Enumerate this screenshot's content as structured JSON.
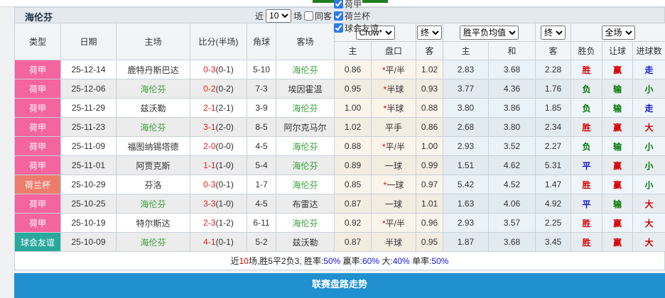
{
  "title_bar": {
    "team": "海伦芬",
    "near": "近",
    "games": "10",
    "games_suffix": "场",
    "same_venue": "同客",
    "filters": [
      {
        "label": "荷甲",
        "checked": true
      },
      {
        "label": "荷兰杯",
        "checked": true
      },
      {
        "label": "球会友谊",
        "checked": true
      }
    ]
  },
  "selects": {
    "bookmaker": "Crow*",
    "final_ah": "终",
    "avg": "胜平负均值",
    "final_avg": "终",
    "scope": "全场"
  },
  "columns": [
    "类型",
    "日期",
    "主场",
    "比分(半场)",
    "角球",
    "客场",
    "主",
    "盘口",
    "客",
    "主",
    "和",
    "客",
    "胜负",
    "让球",
    "进球数"
  ],
  "rows": [
    {
      "type": "荷甲",
      "tk": "league",
      "date": "25-12-14",
      "home": "鹿特丹斯巴达",
      "hg": false,
      "score": "0-3",
      "half": "(0-1)",
      "corner": "5-10",
      "away": "海伦芬",
      "ag": true,
      "ah": [
        "0.86",
        "*平/半",
        "1.02"
      ],
      "avg": [
        "2.83",
        "3.68",
        "2.28"
      ],
      "res": [
        "胜",
        "r"
      ],
      "hcp": [
        "赢",
        "r"
      ],
      "goal": [
        "走",
        "b"
      ]
    },
    {
      "type": "荷甲",
      "tk": "league",
      "date": "25-12-06",
      "home": "海伦芬",
      "hg": true,
      "score": "0-2",
      "half": "(0-2)",
      "corner": "7-3",
      "away": "埃因霍温",
      "ag": false,
      "ah": [
        "0.95",
        "*半球",
        "0.93"
      ],
      "avg": [
        "3.77",
        "4.36",
        "1.76"
      ],
      "res": [
        "负",
        "g"
      ],
      "hcp": [
        "输",
        "g"
      ],
      "goal": [
        "小",
        "g"
      ]
    },
    {
      "type": "荷甲",
      "tk": "league",
      "date": "25-11-29",
      "home": "兹沃勒",
      "hg": false,
      "score": "2-1",
      "half": "(2-1)",
      "corner": "3-9",
      "away": "海伦芬",
      "ag": true,
      "ah": [
        "1.00",
        "*半球",
        "0.88"
      ],
      "avg": [
        "3.80",
        "3.86",
        "1.85"
      ],
      "res": [
        "负",
        "g"
      ],
      "hcp": [
        "输",
        "g"
      ],
      "goal": [
        "走",
        "b"
      ]
    },
    {
      "type": "荷甲",
      "tk": "league",
      "date": "25-11-23",
      "home": "海伦芬",
      "hg": true,
      "score": "3-1",
      "half": "(2-0)",
      "corner": "8-5",
      "away": "阿尔克马尔",
      "ag": false,
      "ah": [
        "1.02",
        "平手",
        "0.86"
      ],
      "avg": [
        "2.68",
        "3.80",
        "2.34"
      ],
      "res": [
        "胜",
        "r"
      ],
      "hcp": [
        "赢",
        "r"
      ],
      "goal": [
        "大",
        "r"
      ]
    },
    {
      "type": "荷甲",
      "tk": "league",
      "date": "25-11-09",
      "home": "福图纳锡塔德",
      "hg": false,
      "score": "2-0",
      "half": "(0-0)",
      "corner": "4-5",
      "away": "海伦芬",
      "ag": true,
      "ah": [
        "0.88",
        "*平/半",
        "1.00"
      ],
      "avg": [
        "2.93",
        "3.52",
        "2.27"
      ],
      "res": [
        "负",
        "g"
      ],
      "hcp": [
        "输",
        "g"
      ],
      "goal": [
        "小",
        "g"
      ]
    },
    {
      "type": "荷甲",
      "tk": "league",
      "date": "25-11-01",
      "home": "阿贾克斯",
      "hg": false,
      "score": "1-1",
      "half": "(1-0)",
      "corner": "5-4",
      "away": "海伦芬",
      "ag": true,
      "ah": [
        "0.89",
        "一球",
        "0.99"
      ],
      "avg": [
        "1.51",
        "4.62",
        "5.31"
      ],
      "res": [
        "平",
        "b"
      ],
      "hcp": [
        "赢",
        "r"
      ],
      "goal": [
        "小",
        "g"
      ]
    },
    {
      "type": "荷兰杯",
      "tk": "cup",
      "date": "25-10-29",
      "home": "芬洛",
      "hg": false,
      "score": "0-3",
      "half": "(0-1)",
      "corner": "1-7",
      "away": "海伦芬",
      "ag": true,
      "ah": [
        "0.85",
        "*一球",
        "0.97"
      ],
      "avg": [
        "5.42",
        "4.52",
        "1.47"
      ],
      "res": [
        "胜",
        "r"
      ],
      "hcp": [
        "赢",
        "r"
      ],
      "goal": [
        "小",
        "g"
      ]
    },
    {
      "type": "荷甲",
      "tk": "league",
      "date": "25-10-25",
      "home": "海伦芬",
      "hg": true,
      "score": "3-3",
      "half": "(1-0)",
      "corner": "4-5",
      "away": "布雷达",
      "ag": false,
      "ah": [
        "0.87",
        "一球",
        "1.01"
      ],
      "avg": [
        "1.63",
        "4.06",
        "4.92"
      ],
      "res": [
        "平",
        "b"
      ],
      "hcp": [
        "输",
        "g"
      ],
      "goal": [
        "大",
        "r"
      ]
    },
    {
      "type": "荷甲",
      "tk": "league",
      "date": "25-10-19",
      "home": "特尔斯达",
      "hg": false,
      "score": "2-3",
      "half": "(1-2)",
      "corner": "6-11",
      "away": "海伦芬",
      "ag": true,
      "ah": [
        "0.92",
        "*平/半",
        "0.96"
      ],
      "avg": [
        "2.93",
        "3.57",
        "2.25"
      ],
      "res": [
        "胜",
        "r"
      ],
      "hcp": [
        "赢",
        "r"
      ],
      "goal": [
        "大",
        "r"
      ]
    },
    {
      "type": "球会友谊",
      "tk": "friendly",
      "date": "25-10-09",
      "home": "海伦芬",
      "hg": true,
      "score": "4-1",
      "half": "(0-1)",
      "corner": "5-2",
      "away": "兹沃勒",
      "ag": false,
      "ah": [
        "0.87",
        "半球",
        "0.95"
      ],
      "avg": [
        "1.87",
        "3.68",
        "3.45"
      ],
      "res": [
        "胜",
        "r"
      ],
      "hcp": [
        "赢",
        "r"
      ],
      "goal": [
        "大",
        "r"
      ]
    }
  ],
  "summary": [
    {
      "t": "近",
      "c": "k"
    },
    {
      "t": "10",
      "c": "r"
    },
    {
      "t": "场,胜5平2负3, 胜率:",
      "c": "k"
    },
    {
      "t": "50%",
      "c": "b"
    },
    {
      "t": " 赢率:",
      "c": "k"
    },
    {
      "t": "60%",
      "c": "b"
    },
    {
      "t": " 大:",
      "c": "k"
    },
    {
      "t": "40%",
      "c": "b"
    },
    {
      "t": " 单率:",
      "c": "k"
    },
    {
      "t": "50%",
      "c": "b"
    }
  ],
  "footer": "联赛盘路走势",
  "colors": {
    "league_pink": "#f4649e",
    "cup_salmon": "#ee7c6c",
    "friendly_teal": "#29a89c",
    "win_red": "#d40000",
    "lose_green": "#007700",
    "draw_blue": "#1515cc",
    "footer_blue": "#2090d0"
  }
}
